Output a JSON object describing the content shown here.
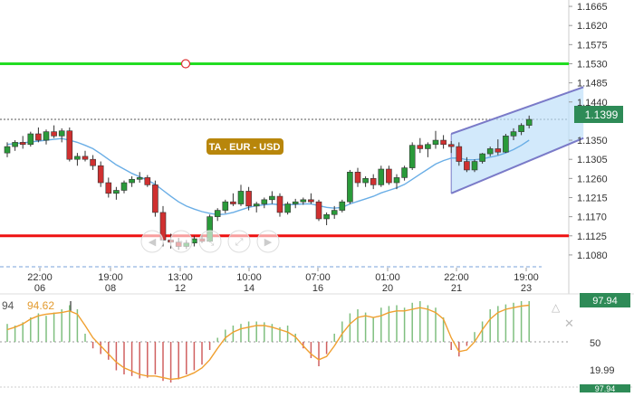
{
  "chart_data": {
    "type": "candlestick",
    "title": "TA . EUR - USD",
    "price_axis": {
      "ticks": [
        "1.1665",
        "1.1620",
        "1.1575",
        "1.1530",
        "1.1485",
        "1.1440",
        "1.1399",
        "1.1350",
        "1.1305",
        "1.1260",
        "1.1215",
        "1.1170",
        "1.1125",
        "1.1080"
      ],
      "ylim": [
        1.105,
        1.168
      ]
    },
    "last_price": 1.1399,
    "last_price_label": "1.1399",
    "horizontal_lines": [
      {
        "name": "resistance",
        "value": 1.153,
        "color": "#22dd22"
      },
      {
        "name": "support",
        "value": 1.1125,
        "color": "#ee1111"
      }
    ],
    "x_axis": {
      "ticks": [
        {
          "time": "22:00",
          "date": "06"
        },
        {
          "time": "19:00",
          "date": "08"
        },
        {
          "time": "13:00",
          "date": "12"
        },
        {
          "time": "10:00",
          "date": "14"
        },
        {
          "time": "07:00",
          "date": "16"
        },
        {
          "time": "01:00",
          "date": "20"
        },
        {
          "time": "22:00",
          "date": "21"
        },
        {
          "time": "19:00",
          "date": "23"
        }
      ]
    },
    "candles": [
      [
        1.132,
        1.1345,
        1.131,
        1.1335
      ],
      [
        1.1335,
        1.135,
        1.1325,
        1.1345
      ],
      [
        1.1345,
        1.136,
        1.133,
        1.134
      ],
      [
        1.134,
        1.137,
        1.1335,
        1.1365
      ],
      [
        1.1365,
        1.138,
        1.1345,
        1.135
      ],
      [
        1.135,
        1.1375,
        1.134,
        1.137
      ],
      [
        1.137,
        1.1385,
        1.1355,
        1.136
      ],
      [
        1.136,
        1.1378,
        1.1345,
        1.1372
      ],
      [
        1.1372,
        1.138,
        1.13,
        1.1305
      ],
      [
        1.1305,
        1.132,
        1.129,
        1.1312
      ],
      [
        1.1312,
        1.1325,
        1.13,
        1.1305
      ],
      [
        1.1305,
        1.1315,
        1.128,
        1.129
      ],
      [
        1.129,
        1.13,
        1.124,
        1.125
      ],
      [
        1.125,
        1.1262,
        1.1215,
        1.1225
      ],
      [
        1.1225,
        1.124,
        1.121,
        1.1232
      ],
      [
        1.1232,
        1.1255,
        1.1225,
        1.125
      ],
      [
        1.125,
        1.1265,
        1.124,
        1.1258
      ],
      [
        1.1258,
        1.1275,
        1.125,
        1.1262
      ],
      [
        1.1262,
        1.1268,
        1.124,
        1.1245
      ],
      [
        1.1245,
        1.1255,
        1.117,
        1.118
      ],
      [
        1.118,
        1.1195,
        1.11,
        1.1115
      ],
      [
        1.1115,
        1.113,
        1.1095,
        1.111
      ],
      [
        1.111,
        1.112,
        1.1092,
        1.11
      ],
      [
        1.11,
        1.1115,
        1.1094,
        1.1108
      ],
      [
        1.1108,
        1.1125,
        1.11,
        1.1118
      ],
      [
        1.1118,
        1.1128,
        1.1108,
        1.1112
      ],
      [
        1.1112,
        1.1175,
        1.111,
        1.117
      ],
      [
        1.117,
        1.119,
        1.116,
        1.1185
      ],
      [
        1.1185,
        1.121,
        1.1178,
        1.1205
      ],
      [
        1.1205,
        1.1225,
        1.1195,
        1.12
      ],
      [
        1.12,
        1.1245,
        1.1195,
        1.123
      ],
      [
        1.123,
        1.124,
        1.1185,
        1.1195
      ],
      [
        1.1195,
        1.1205,
        1.118,
        1.12
      ],
      [
        1.12,
        1.1215,
        1.119,
        1.121
      ],
      [
        1.121,
        1.123,
        1.12,
        1.1218
      ],
      [
        1.1218,
        1.1225,
        1.117,
        1.118
      ],
      [
        1.118,
        1.1205,
        1.1175,
        1.12
      ],
      [
        1.12,
        1.1212,
        1.119,
        1.1205
      ],
      [
        1.1205,
        1.1215,
        1.1198,
        1.121
      ],
      [
        1.121,
        1.1225,
        1.12,
        1.1205
      ],
      [
        1.1205,
        1.121,
        1.116,
        1.1165
      ],
      [
        1.1165,
        1.118,
        1.115,
        1.1175
      ],
      [
        1.1175,
        1.1195,
        1.1165,
        1.1185
      ],
      [
        1.1185,
        1.121,
        1.118,
        1.1205
      ],
      [
        1.1205,
        1.128,
        1.12,
        1.1275
      ],
      [
        1.1275,
        1.1285,
        1.124,
        1.125
      ],
      [
        1.125,
        1.1265,
        1.124,
        1.126
      ],
      [
        1.126,
        1.127,
        1.1235,
        1.1245
      ],
      [
        1.1245,
        1.129,
        1.124,
        1.1282
      ],
      [
        1.1282,
        1.129,
        1.1245,
        1.125
      ],
      [
        1.125,
        1.127,
        1.1235,
        1.1262
      ],
      [
        1.1262,
        1.129,
        1.1255,
        1.1285
      ],
      [
        1.1285,
        1.1345,
        1.128,
        1.1338
      ],
      [
        1.1338,
        1.1355,
        1.132,
        1.133
      ],
      [
        1.133,
        1.1345,
        1.131,
        1.134
      ],
      [
        1.134,
        1.1372,
        1.133,
        1.135
      ],
      [
        1.135,
        1.1362,
        1.133,
        1.134
      ],
      [
        1.134,
        1.1348,
        1.132,
        1.1335
      ],
      [
        1.1335,
        1.1345,
        1.129,
        1.13
      ],
      [
        1.13,
        1.131,
        1.1275,
        1.128
      ],
      [
        1.128,
        1.1305,
        1.1275,
        1.13
      ],
      [
        1.13,
        1.132,
        1.1295,
        1.1318
      ],
      [
        1.1318,
        1.1335,
        1.1312,
        1.133
      ],
      [
        1.133,
        1.1352,
        1.1315,
        1.1322
      ],
      [
        1.1322,
        1.1365,
        1.132,
        1.136
      ],
      [
        1.136,
        1.1378,
        1.135,
        1.137
      ],
      [
        1.137,
        1.139,
        1.1362,
        1.1385
      ],
      [
        1.1385,
        1.1408,
        1.1378,
        1.1399
      ]
    ],
    "moving_average": [
      1.134,
      1.1342,
      1.1344,
      1.1346,
      1.1348,
      1.135,
      1.1352,
      1.1354,
      1.135,
      1.1345,
      1.1338,
      1.133,
      1.1318,
      1.1305,
      1.1292,
      1.1282,
      1.1272,
      1.1264,
      1.1256,
      1.1246,
      1.1232,
      1.1218,
      1.1205,
      1.1195,
      1.1188,
      1.1182,
      1.1178,
      1.1175,
      1.1176,
      1.118,
      1.1186,
      1.1192,
      1.1196,
      1.1198,
      1.12,
      1.1198,
      1.1198,
      1.1199,
      1.12,
      1.12,
      1.1196,
      1.1192,
      1.119,
      1.1192,
      1.12,
      1.1206,
      1.1212,
      1.1218,
      1.1226,
      1.1232,
      1.1238,
      1.1246,
      1.1258,
      1.127,
      1.1282,
      1.1294,
      1.1302,
      1.1308,
      1.1308,
      1.1304,
      1.1304,
      1.1306,
      1.131,
      1.1314,
      1.132,
      1.1328,
      1.1338,
      1.135
    ],
    "channel": {
      "upper": {
        "from": {
          "x_index": 57,
          "y": 1.1365
        },
        "to": {
          "x_index": 67,
          "y": 1.1475
        }
      },
      "lower": {
        "from": {
          "x_index": 57,
          "y": 1.1225
        },
        "to": {
          "x_index": 67,
          "y": 1.1355
        }
      }
    },
    "oscillator": {
      "labels": [
        "94",
        "94.62"
      ],
      "axis_ticks": [
        "50",
        "19.99"
      ],
      "badge_top": "97.94",
      "badge_bottom": "97.94",
      "histogram": [
        22,
        20,
        24,
        30,
        35,
        32,
        36,
        40,
        45,
        40,
        10,
        -8,
        -15,
        -22,
        -35,
        -40,
        -42,
        -45,
        -44,
        -40,
        -48,
        -50,
        -46,
        -40,
        -35,
        -28,
        -10,
        5,
        15,
        20,
        22,
        25,
        25,
        24,
        22,
        18,
        20,
        10,
        -8,
        -20,
        -30,
        -15,
        10,
        25,
        35,
        40,
        36,
        30,
        42,
        44,
        45,
        42,
        48,
        50,
        45,
        42,
        30,
        -10,
        -18,
        -5,
        12,
        25,
        40,
        44,
        46,
        48,
        50,
        50
      ],
      "signal": [
        15,
        18,
        22,
        28,
        32,
        34,
        35,
        36,
        38,
        34,
        20,
        5,
        -5,
        -15,
        -25,
        -32,
        -36,
        -40,
        -42,
        -42,
        -44,
        -46,
        -45,
        -42,
        -38,
        -32,
        -22,
        -8,
        5,
        12,
        16,
        18,
        20,
        20,
        18,
        15,
        12,
        6,
        -5,
        -15,
        -22,
        -18,
        -5,
        10,
        22,
        30,
        32,
        30,
        32,
        36,
        38,
        38,
        40,
        42,
        40,
        36,
        28,
        5,
        -12,
        -10,
        0,
        15,
        28,
        36,
        40,
        42,
        44,
        45
      ]
    }
  },
  "colors": {
    "up": "#2a9a3a",
    "down": "#d03030",
    "ma": "#6aaee6",
    "channel_fill": "#bfe0fa",
    "channel_line": "#7a7ac8",
    "osc_line": "#f0a030",
    "title_badge": "#b8860b",
    "last_badge": "#2e8b57"
  }
}
